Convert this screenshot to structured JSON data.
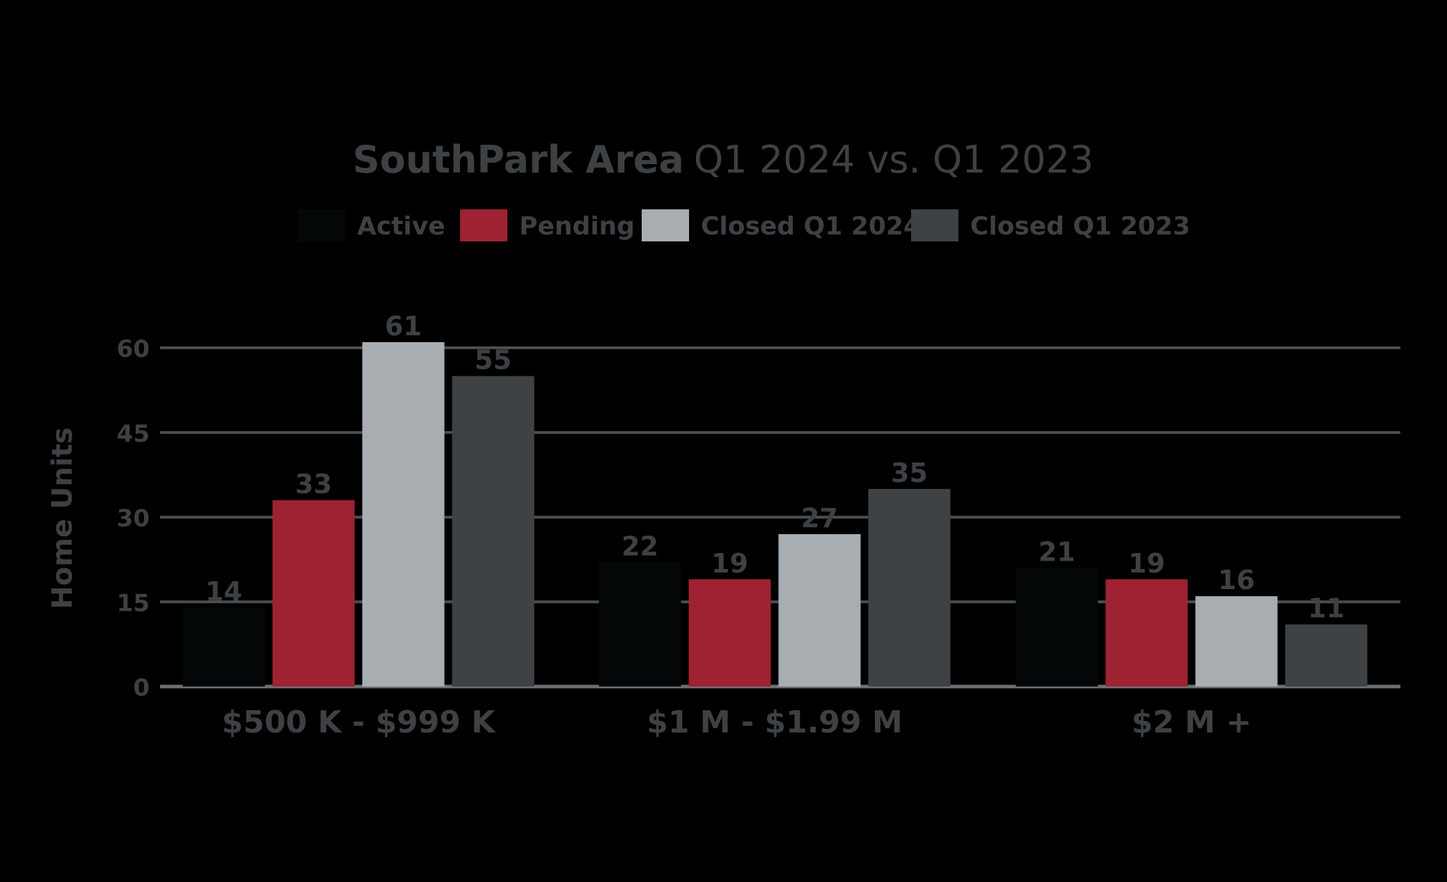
{
  "chart_data": {
    "type": "bar",
    "title": {
      "bold_part": "SouthPark Area",
      "normal_part": "Q1 2024 vs. Q1 2023"
    },
    "xlabel": "",
    "ylabel": "Home Units",
    "ylim": [
      0,
      60
    ],
    "yticks": [
      "0",
      "15",
      "30",
      "45",
      "60"
    ],
    "grid": true,
    "legend_position": "top-center",
    "categories": [
      "$500 K - $999 K",
      "$1 M - $1.99 M",
      "$2 M +"
    ],
    "series": [
      {
        "name": "Active",
        "color": "#030707",
        "values": [
          14,
          22,
          21
        ]
      },
      {
        "name": "Pending",
        "color": "#9e2232",
        "values": [
          33,
          19,
          19
        ]
      },
      {
        "name": "Closed Q1 2024",
        "color": "#a8adb2",
        "values": [
          61,
          27,
          16
        ]
      },
      {
        "name": "Closed Q1 2023",
        "color": "#3e4245",
        "values": [
          55,
          35,
          11
        ]
      }
    ],
    "data_labels": [
      [
        "14",
        "22",
        "21"
      ],
      [
        "33",
        "19",
        "19"
      ],
      [
        "61",
        "27",
        "16"
      ],
      [
        "55",
        "35",
        "11"
      ]
    ],
    "colors": {
      "text": "#3d4144",
      "gridline": "#4b4f52",
      "baseline": "#6e7276"
    }
  }
}
